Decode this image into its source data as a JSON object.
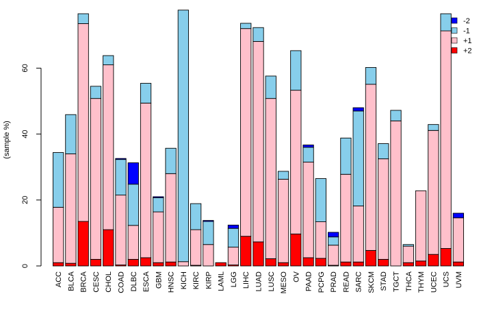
{
  "chart_data": {
    "type": "bar",
    "stacked": true,
    "ylabel": "(sample %)",
    "xlabel": "",
    "title": "",
    "ylim": [
      0,
      78
    ],
    "yticks": [
      0,
      20,
      40,
      60
    ],
    "grid": false,
    "legend_position": "top-right",
    "categories": [
      "ACC",
      "BLCA",
      "BRCA",
      "CESC",
      "CHOL",
      "COAD",
      "DLBC",
      "ESCA",
      "GBM",
      "HNSC",
      "KICH",
      "KIRC",
      "KIRP",
      "LAML",
      "LGG",
      "LIHC",
      "LUAD",
      "LUSC",
      "MESO",
      "OV",
      "PAAD",
      "PCPG",
      "PRAD",
      "READ",
      "SARC",
      "SKCM",
      "STAD",
      "TGCT",
      "THCA",
      "THYM",
      "UCEC",
      "UCS",
      "UVM"
    ],
    "series": [
      {
        "name": "+2",
        "color": "#ff0000",
        "values": [
          1.0,
          0.8,
          13.5,
          2.0,
          11.0,
          0.3,
          2.0,
          2.5,
          1.0,
          1.2,
          0.0,
          0.2,
          0.0,
          1.0,
          0.3,
          9.0,
          7.3,
          2.2,
          1.0,
          9.7,
          2.5,
          2.3,
          0.2,
          1.2,
          1.2,
          4.7,
          2.0,
          0.0,
          1.0,
          1.5,
          3.5,
          5.3,
          1.2
        ]
      },
      {
        "name": "+1",
        "color": "#ffc0cb",
        "values": [
          16.8,
          33.2,
          60.0,
          48.8,
          50.0,
          21.2,
          10.3,
          46.9,
          15.4,
          26.8,
          1.3,
          10.8,
          6.5,
          0.0,
          5.4,
          63.0,
          60.8,
          48.6,
          25.3,
          43.6,
          29.0,
          11.1,
          6.1,
          26.6,
          17.0,
          50.4,
          30.5,
          44.0,
          5.0,
          21.3,
          37.6,
          66.0,
          13.4
        ]
      },
      {
        "name": "-1",
        "color": "#87ceeb",
        "values": [
          16.6,
          11.9,
          3.0,
          3.7,
          2.8,
          10.8,
          12.5,
          6.0,
          4.3,
          7.7,
          76.3,
          7.9,
          7.0,
          0.0,
          5.7,
          1.6,
          4.2,
          6.8,
          2.4,
          12.0,
          4.5,
          13.1,
          2.5,
          11.0,
          28.8,
          5.1,
          4.6,
          3.2,
          0.5,
          0.0,
          1.8,
          5.2,
          0.0
        ]
      },
      {
        "name": "-2",
        "color": "#0000ff",
        "values": [
          0.0,
          0.0,
          0.0,
          0.0,
          0.0,
          0.3,
          6.5,
          0.0,
          0.3,
          0.0,
          0.0,
          0.0,
          0.3,
          0.0,
          1.0,
          0.0,
          0.0,
          0.0,
          0.0,
          0.0,
          0.7,
          0.0,
          1.4,
          0.0,
          1.0,
          0.0,
          0.0,
          0.0,
          0.0,
          0.0,
          0.0,
          0.0,
          1.4
        ]
      }
    ],
    "legend_order": [
      "-2",
      "-1",
      "+1",
      "+2"
    ]
  }
}
